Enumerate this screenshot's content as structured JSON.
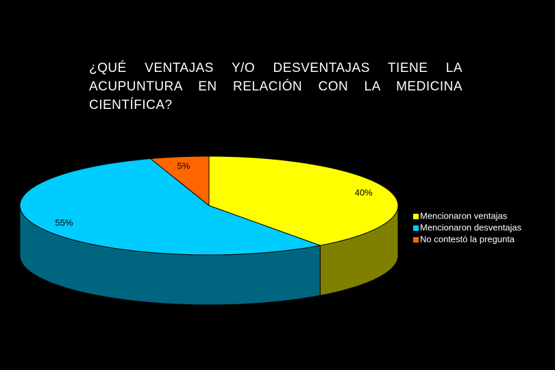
{
  "chart_data": {
    "type": "pie3d",
    "title": "¿QUÉ VENTAJAS Y/O DESVENTAJAS TIENE LA ACUPUNTURA EN RELACIÓN CON LA MEDICINA CIENTÍFICA?",
    "categories": [
      "Mencionaron ventajas",
      "Mencionaron desventajas",
      "No contestó la pregunta"
    ],
    "values": [
      40,
      55,
      5
    ],
    "value_labels": [
      "40%",
      "55%",
      "5%"
    ],
    "colors": [
      "#ffff00",
      "#00ccff",
      "#ff6600"
    ],
    "legend": "right"
  }
}
